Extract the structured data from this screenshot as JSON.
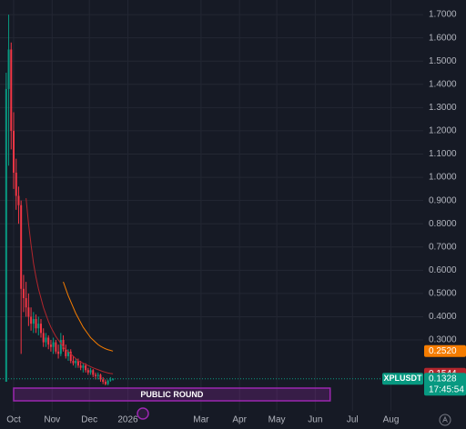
{
  "chart_data": {
    "type": "candlestick",
    "symbol": "XPLUSDT",
    "x": [
      "2025-09-25",
      "2025-09-27",
      "2025-09-29",
      "2025-10-01",
      "2025-10-03",
      "2025-10-05",
      "2025-10-07",
      "2025-10-09",
      "2025-10-11",
      "2025-10-13",
      "2025-10-15",
      "2025-10-17",
      "2025-10-19",
      "2025-10-21",
      "2025-10-23",
      "2025-10-25",
      "2025-10-27",
      "2025-10-29",
      "2025-10-31",
      "2025-11-02",
      "2025-11-04",
      "2025-11-06",
      "2025-11-08",
      "2025-11-10",
      "2025-11-12",
      "2025-11-14",
      "2025-11-16",
      "2025-11-18",
      "2025-11-20",
      "2025-11-22",
      "2025-11-24",
      "2025-11-26",
      "2025-11-28",
      "2025-11-30",
      "2025-12-02",
      "2025-12-04",
      "2025-12-06",
      "2025-12-08",
      "2025-12-10",
      "2025-12-12",
      "2025-12-14",
      "2025-12-16",
      "2025-12-18",
      "2025-12-20"
    ],
    "open": [
      0.12,
      1.38,
      1.55,
      1.2,
      1.02,
      0.92,
      0.88,
      0.52,
      0.48,
      0.44,
      0.4,
      0.37,
      0.39,
      0.35,
      0.37,
      0.33,
      0.29,
      0.31,
      0.28,
      0.27,
      0.29,
      0.25,
      0.24,
      0.3,
      0.26,
      0.23,
      0.25,
      0.21,
      0.2,
      0.21,
      0.19,
      0.18,
      0.19,
      0.17,
      0.16,
      0.17,
      0.15,
      0.145,
      0.15,
      0.13,
      0.12,
      0.11,
      0.125,
      0.13
    ],
    "high": [
      1.45,
      1.7,
      1.58,
      1.28,
      1.08,
      0.96,
      0.9,
      0.58,
      0.55,
      0.5,
      0.44,
      0.42,
      0.41,
      0.4,
      0.39,
      0.35,
      0.33,
      0.32,
      0.3,
      0.31,
      0.3,
      0.28,
      0.33,
      0.32,
      0.28,
      0.26,
      0.26,
      0.23,
      0.22,
      0.22,
      0.21,
      0.2,
      0.2,
      0.18,
      0.18,
      0.175,
      0.16,
      0.16,
      0.155,
      0.14,
      0.13,
      0.13,
      0.14,
      0.135
    ],
    "low": [
      0.12,
      1.05,
      1.12,
      0.95,
      0.86,
      0.8,
      0.24,
      0.42,
      0.4,
      0.36,
      0.34,
      0.33,
      0.33,
      0.32,
      0.31,
      0.27,
      0.27,
      0.26,
      0.25,
      0.24,
      0.24,
      0.22,
      0.23,
      0.25,
      0.22,
      0.21,
      0.2,
      0.19,
      0.18,
      0.18,
      0.17,
      0.16,
      0.16,
      0.15,
      0.15,
      0.14,
      0.13,
      0.13,
      0.12,
      0.11,
      0.105,
      0.105,
      0.12,
      0.125
    ],
    "close": [
      1.38,
      1.55,
      1.2,
      1.02,
      0.92,
      0.88,
      0.52,
      0.48,
      0.44,
      0.4,
      0.37,
      0.39,
      0.35,
      0.37,
      0.33,
      0.29,
      0.31,
      0.28,
      0.27,
      0.29,
      0.25,
      0.24,
      0.3,
      0.26,
      0.23,
      0.25,
      0.21,
      0.2,
      0.21,
      0.19,
      0.18,
      0.19,
      0.17,
      0.16,
      0.17,
      0.15,
      0.145,
      0.15,
      0.13,
      0.12,
      0.11,
      0.125,
      0.13,
      0.1328
    ],
    "up_color": "#089981",
    "down_color": "#f23645",
    "overlays": [
      {
        "color": "#b2262d",
        "value_label": "0.1544",
        "values": [
          null,
          null,
          null,
          null,
          null,
          null,
          null,
          null,
          0.91,
          0.8,
          0.71,
          0.63,
          0.57,
          0.52,
          0.48,
          0.44,
          0.41,
          0.38,
          0.355,
          0.335,
          0.315,
          0.3,
          0.285,
          0.27,
          0.26,
          0.25,
          0.24,
          0.23,
          0.22,
          0.21,
          0.205,
          0.2,
          0.195,
          0.19,
          0.185,
          0.18,
          0.176,
          0.172,
          0.168,
          0.164,
          0.161,
          0.158,
          0.156,
          0.1544
        ]
      },
      {
        "color": "#f57c00",
        "value_label": "0.2520",
        "values": [
          null,
          null,
          null,
          null,
          null,
          null,
          null,
          null,
          null,
          null,
          null,
          null,
          null,
          null,
          null,
          null,
          null,
          null,
          null,
          null,
          null,
          null,
          null,
          0.55,
          0.52,
          0.49,
          0.465,
          0.44,
          0.415,
          0.395,
          0.375,
          0.355,
          0.34,
          0.325,
          0.31,
          0.3,
          0.29,
          0.28,
          0.273,
          0.267,
          0.262,
          0.258,
          0.255,
          0.252
        ]
      }
    ],
    "last_price": {
      "value": 0.1328,
      "countdown": "17:45:54",
      "color": "#089981"
    },
    "event": {
      "label": "PUBLIC ROUND",
      "start": "2025-10-01",
      "end": "2026-06-13",
      "color": "#9c27b0"
    },
    "xlim": [
      "2025-09-20",
      "2026-08-27"
    ],
    "xticks": [
      {
        "value": "2025-10-01",
        "label": "Oct"
      },
      {
        "value": "2025-11-01",
        "label": "Nov"
      },
      {
        "value": "2025-12-01",
        "label": "Dec"
      },
      {
        "value": "2026-01-01",
        "label": "2026"
      },
      {
        "value": "2026-03-01",
        "label": "Mar"
      },
      {
        "value": "2026-04-01",
        "label": "Apr"
      },
      {
        "value": "2026-05-01",
        "label": "May"
      },
      {
        "value": "2026-06-01",
        "label": "Jun"
      },
      {
        "value": "2026-07-01",
        "label": "Jul"
      },
      {
        "value": "2026-08-01",
        "label": "Aug"
      }
    ],
    "ylim": [
      -0.005,
      1.763
    ],
    "yticks": [
      {
        "value": 0.3,
        "label": "0.3000"
      },
      {
        "value": 0.4,
        "label": "0.4000"
      },
      {
        "value": 0.5,
        "label": "0.5000"
      },
      {
        "value": 0.6,
        "label": "0.6000"
      },
      {
        "value": 0.7,
        "label": "0.7000"
      },
      {
        "value": 0.8,
        "label": "0.8000"
      },
      {
        "value": 0.9,
        "label": "0.9000"
      },
      {
        "value": 1.0,
        "label": "1.0000"
      },
      {
        "value": 1.1,
        "label": "1.1000"
      },
      {
        "value": 1.2,
        "label": "1.2000"
      },
      {
        "value": 1.3,
        "label": "1.3000"
      },
      {
        "value": 1.4,
        "label": "1.4000"
      },
      {
        "value": 1.5,
        "label": "1.5000"
      },
      {
        "value": 1.6,
        "label": "1.6000"
      },
      {
        "value": 1.7,
        "label": "1.7000"
      }
    ],
    "grid": true
  }
}
